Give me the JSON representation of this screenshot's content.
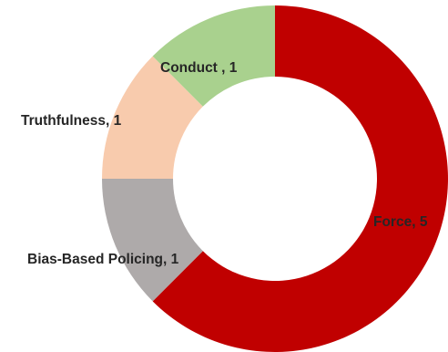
{
  "chart_data": {
    "type": "pie",
    "variant": "donut",
    "categories": [
      "Force",
      "Bias-Based Policing",
      "Truthfulness",
      "Conduct "
    ],
    "values": [
      5,
      1,
      1,
      1
    ],
    "labels": [
      "Force, 5",
      "Bias-Based Policing, 1",
      "Truthfulness, 1",
      "Conduct , 1"
    ],
    "colors": [
      "#c00000",
      "#aeaaaa",
      "#f8cbad",
      "#a9d18e"
    ],
    "start_angle_deg": 0,
    "direction": "clockwise",
    "legend": "none",
    "title": ""
  }
}
